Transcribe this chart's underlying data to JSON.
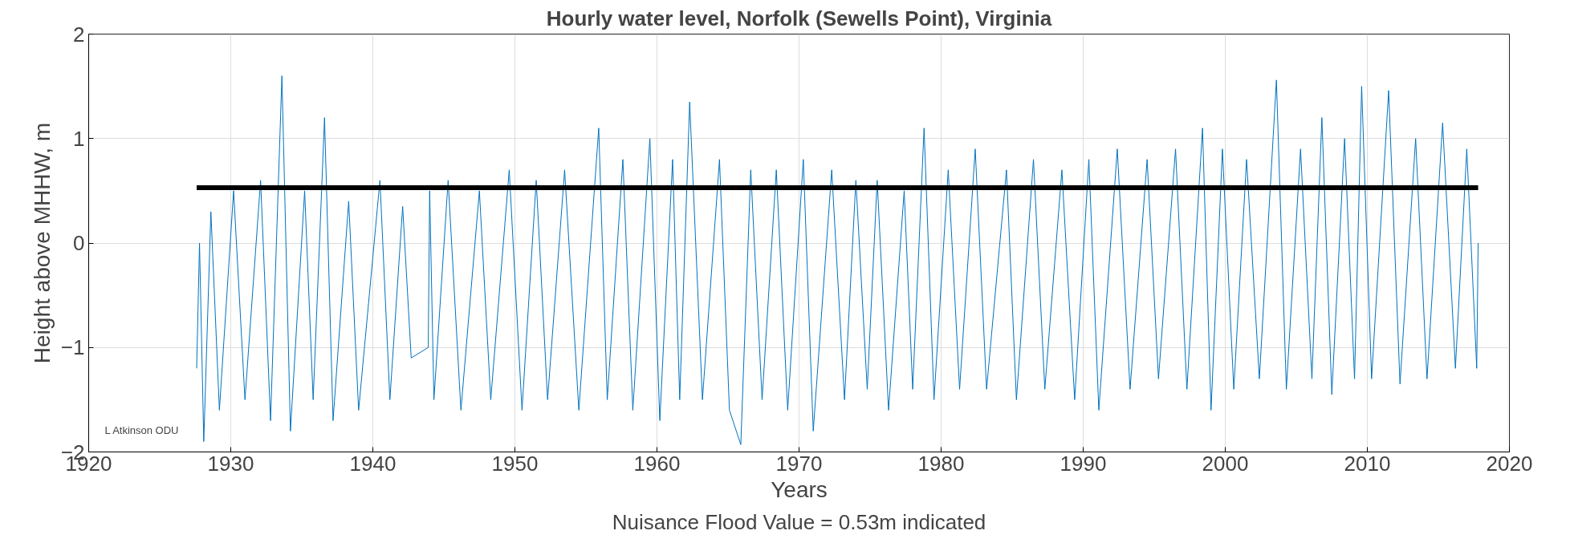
{
  "chart_data": {
    "type": "line",
    "title": "Hourly water level, Norfolk (Sewells Point), Virginia",
    "xlabel": "Years",
    "ylabel": "Height above MHHW, m",
    "annotations": [
      "L Atkinson ODU",
      "Nuisance Flood Value = 0.53m indicated"
    ],
    "xlim": [
      1920,
      2020
    ],
    "xticks": [
      1920,
      1930,
      1940,
      1950,
      1960,
      1970,
      1980,
      1990,
      2000,
      2010,
      2020
    ],
    "ylim": [
      -2,
      2
    ],
    "yticks": [
      -2,
      -1,
      0,
      1,
      2
    ],
    "grid": true,
    "marker": "none",
    "line_style": "solid",
    "series": [
      {
        "color": "#0072bd",
        "x": [
          1927.6,
          1927.8,
          1928.1,
          1928.6,
          1929.2,
          1930.2,
          1931,
          1932.1,
          1932.8,
          1933.6,
          1934.2,
          1935.2,
          1935.8,
          1936.6,
          1937.2,
          1938.3,
          1939,
          1940.5,
          1941.2,
          1942.1,
          1942.7,
          1943.9,
          1944.0,
          1944.3,
          1945.3,
          1946.2,
          1947.5,
          1948.3,
          1949.6,
          1950.5,
          1951.5,
          1952.3,
          1953.5,
          1954.5,
          1955.9,
          1956.5,
          1957.6,
          1958.3,
          1959.5,
          1960.2,
          1961.1,
          1961.6,
          1962.3,
          1963.2,
          1964.4,
          1965.1,
          1965.9,
          1966.6,
          1967.4,
          1968.4,
          1969.2,
          1970.3,
          1971.0,
          1972.3,
          1973.2,
          1974.0,
          1974.8,
          1975.5,
          1976.3,
          1977.4,
          1978.0,
          1978.8,
          1979.5,
          1980.5,
          1981.3,
          1982.4,
          1983.2,
          1984.6,
          1985.3,
          1986.5,
          1987.3,
          1988.5,
          1989.4,
          1990.4,
          1991.1,
          1992.4,
          1993.3,
          1994.5,
          1995.3,
          1996.5,
          1997.3,
          1998.4,
          1999.0,
          1999.8,
          2000.6,
          2001.5,
          2002.4,
          2003.6,
          2004.3,
          2005.3,
          2006.1,
          2006.8,
          2007.5,
          2008.4,
          2009.1,
          2009.6,
          2010.3,
          2011.5,
          2012.3,
          2013.4,
          2014.2,
          2015.3,
          2016.2,
          2017.0,
          2017.7,
          2017.8
        ],
        "values": [
          -1.2,
          0.0,
          -1.9,
          0.3,
          -1.6,
          0.5,
          -1.5,
          0.6,
          -1.7,
          1.6,
          -1.8,
          0.5,
          -1.5,
          1.2,
          -1.7,
          0.4,
          -1.6,
          0.6,
          -1.5,
          0.35,
          -1.1,
          -1.0,
          0.5,
          -1.5,
          0.6,
          -1.6,
          0.5,
          -1.5,
          0.7,
          -1.6,
          0.6,
          -1.5,
          0.7,
          -1.6,
          1.1,
          -1.5,
          0.8,
          -1.6,
          1.0,
          -1.7,
          0.8,
          -1.5,
          1.35,
          -1.5,
          0.8,
          -1.6,
          -1.93,
          0.7,
          -1.5,
          0.7,
          -1.6,
          0.8,
          -1.8,
          0.7,
          -1.5,
          0.6,
          -1.4,
          0.6,
          -1.6,
          0.5,
          -1.4,
          1.1,
          -1.5,
          0.7,
          -1.4,
          0.9,
          -1.4,
          0.7,
          -1.5,
          0.8,
          -1.4,
          0.7,
          -1.5,
          0.8,
          -1.6,
          0.9,
          -1.4,
          0.8,
          -1.3,
          0.9,
          -1.4,
          1.1,
          -1.6,
          0.9,
          -1.4,
          0.8,
          -1.3,
          1.56,
          -1.4,
          0.9,
          -1.3,
          1.2,
          -1.45,
          1.0,
          -1.3,
          1.5,
          -1.3,
          1.46,
          -1.35,
          1.0,
          -1.3,
          1.15,
          -1.2,
          0.9,
          -1.2,
          0.0
        ]
      },
      {
        "color": "#000000",
        "x": [
          1927.6,
          2017.8
        ],
        "values": [
          0.53,
          0.53
        ]
      }
    ]
  }
}
